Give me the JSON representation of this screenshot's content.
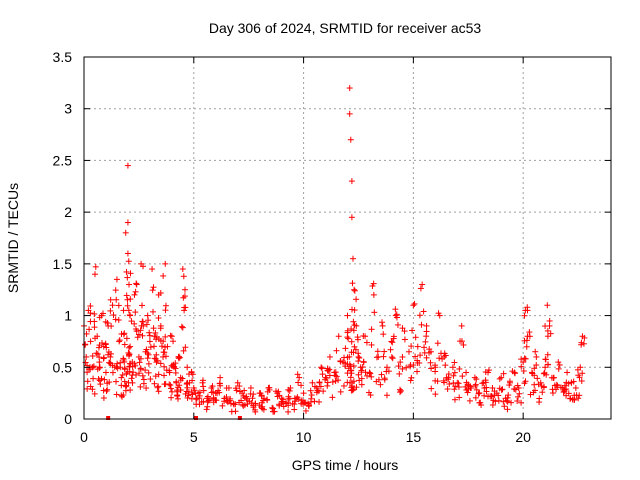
{
  "chart_data": {
    "type": "scatter",
    "title": "Day 306 of 2024, SRMTID for receiver ac53",
    "xlabel": "GPS time / hours",
    "ylabel": "SRMTID / TECUs",
    "xlim": [
      0,
      24
    ],
    "ylim": [
      0,
      3.5
    ],
    "xticks": [
      0,
      5,
      10,
      15,
      20
    ],
    "xtick_labels": [
      "0",
      "5",
      "10",
      "15",
      "20"
    ],
    "yticks": [
      0,
      0.5,
      1,
      1.5,
      2,
      2.5,
      3,
      3.5
    ],
    "ytick_labels": [
      "0",
      "0.5",
      "1",
      "1.5",
      "2",
      "2.5",
      "3",
      "3.5"
    ],
    "grid": true,
    "marker": "plus",
    "color": "#ff0000",
    "series": [
      {
        "name": "SRMTID",
        "x": [
          0.0,
          0.1,
          0.2,
          0.3,
          0.4,
          0.5,
          0.6,
          0.7,
          0.8,
          0.9,
          1.0,
          1.1,
          1.2,
          1.3,
          1.4,
          1.5,
          1.6,
          1.7,
          1.8,
          1.9,
          2.0,
          2.0,
          2.0,
          2.05,
          2.1,
          2.1,
          2.2,
          2.3,
          2.4,
          2.5,
          2.6,
          2.7,
          2.8,
          2.9,
          3.0,
          3.1,
          3.2,
          3.3,
          3.4,
          3.5,
          3.6,
          3.7,
          3.8,
          3.9,
          4.0,
          4.1,
          4.2,
          4.3,
          4.4,
          4.5,
          4.6,
          4.7,
          4.8,
          4.9,
          5.0,
          5.2,
          5.4,
          5.6,
          5.8,
          6.0,
          6.2,
          6.4,
          6.6,
          6.8,
          7.0,
          7.2,
          7.4,
          7.6,
          7.8,
          8.0,
          8.2,
          8.4,
          8.6,
          8.8,
          9.0,
          9.2,
          9.4,
          9.6,
          9.8,
          10.0,
          10.2,
          10.4,
          10.6,
          10.8,
          11.0,
          11.2,
          11.4,
          11.6,
          11.8,
          12.0,
          12.1,
          12.1,
          12.15,
          12.2,
          12.2,
          12.25,
          12.3,
          12.4,
          12.5,
          12.6,
          12.8,
          13.0,
          13.2,
          13.4,
          13.6,
          13.8,
          14.0,
          14.2,
          14.4,
          14.6,
          14.8,
          15.0,
          15.2,
          15.4,
          15.6,
          15.8,
          16.0,
          16.2,
          16.4,
          16.6,
          16.8,
          17.0,
          17.2,
          17.4,
          17.6,
          17.8,
          18.0,
          18.2,
          18.4,
          18.6,
          18.8,
          19.0,
          19.2,
          19.4,
          19.6,
          19.8,
          20.0,
          20.1,
          20.2,
          20.4,
          20.6,
          20.8,
          21.0,
          21.1,
          21.2,
          21.4,
          21.6,
          21.8,
          22.0,
          22.2,
          22.4,
          22.6,
          22.7
        ],
        "y": [
          0.9,
          0.6,
          1.05,
          0.75,
          0.5,
          1.4,
          0.8,
          0.55,
          1.0,
          0.7,
          0.45,
          0.9,
          0.6,
          1.1,
          0.5,
          1.35,
          0.75,
          0.4,
          1.05,
          1.8,
          2.45,
          1.9,
          1.6,
          1.3,
          0.7,
          1.0,
          0.55,
          1.2,
          0.85,
          0.6,
          1.5,
          0.9,
          0.65,
          1.0,
          0.75,
          1.45,
          0.8,
          0.55,
          1.2,
          0.9,
          0.6,
          1.5,
          0.7,
          0.45,
          0.8,
          0.5,
          0.35,
          0.6,
          0.4,
          1.45,
          1.25,
          0.5,
          0.35,
          0.45,
          0.3,
          0.25,
          0.35,
          0.2,
          0.3,
          0.25,
          0.4,
          0.2,
          0.3,
          0.15,
          0.35,
          0.25,
          0.2,
          0.3,
          0.15,
          0.25,
          0.2,
          0.3,
          0.1,
          0.25,
          0.2,
          0.15,
          0.3,
          0.2,
          0.4,
          0.25,
          0.15,
          0.35,
          0.3,
          0.5,
          0.4,
          0.6,
          0.45,
          0.8,
          0.55,
          1.0,
          3.2,
          2.95,
          2.7,
          2.3,
          1.95,
          1.55,
          1.25,
          0.9,
          0.6,
          0.5,
          0.8,
          0.45,
          1.2,
          0.6,
          0.9,
          0.5,
          0.75,
          1.0,
          0.55,
          0.85,
          0.65,
          1.1,
          0.7,
          1.3,
          0.9,
          0.65,
          0.5,
          1.0,
          0.6,
          0.4,
          0.5,
          0.35,
          0.9,
          0.45,
          0.3,
          0.4,
          0.25,
          0.35,
          0.45,
          0.3,
          0.25,
          0.4,
          0.2,
          0.35,
          0.45,
          0.3,
          0.55,
          1.05,
          0.8,
          0.45,
          0.6,
          0.35,
          0.5,
          1.1,
          0.9,
          0.4,
          0.55,
          0.3,
          0.45,
          0.35,
          0.3,
          0.5,
          0.8
        ],
        "zero_markers_x": [
          1.1,
          5.1,
          7.1
        ]
      }
    ]
  }
}
